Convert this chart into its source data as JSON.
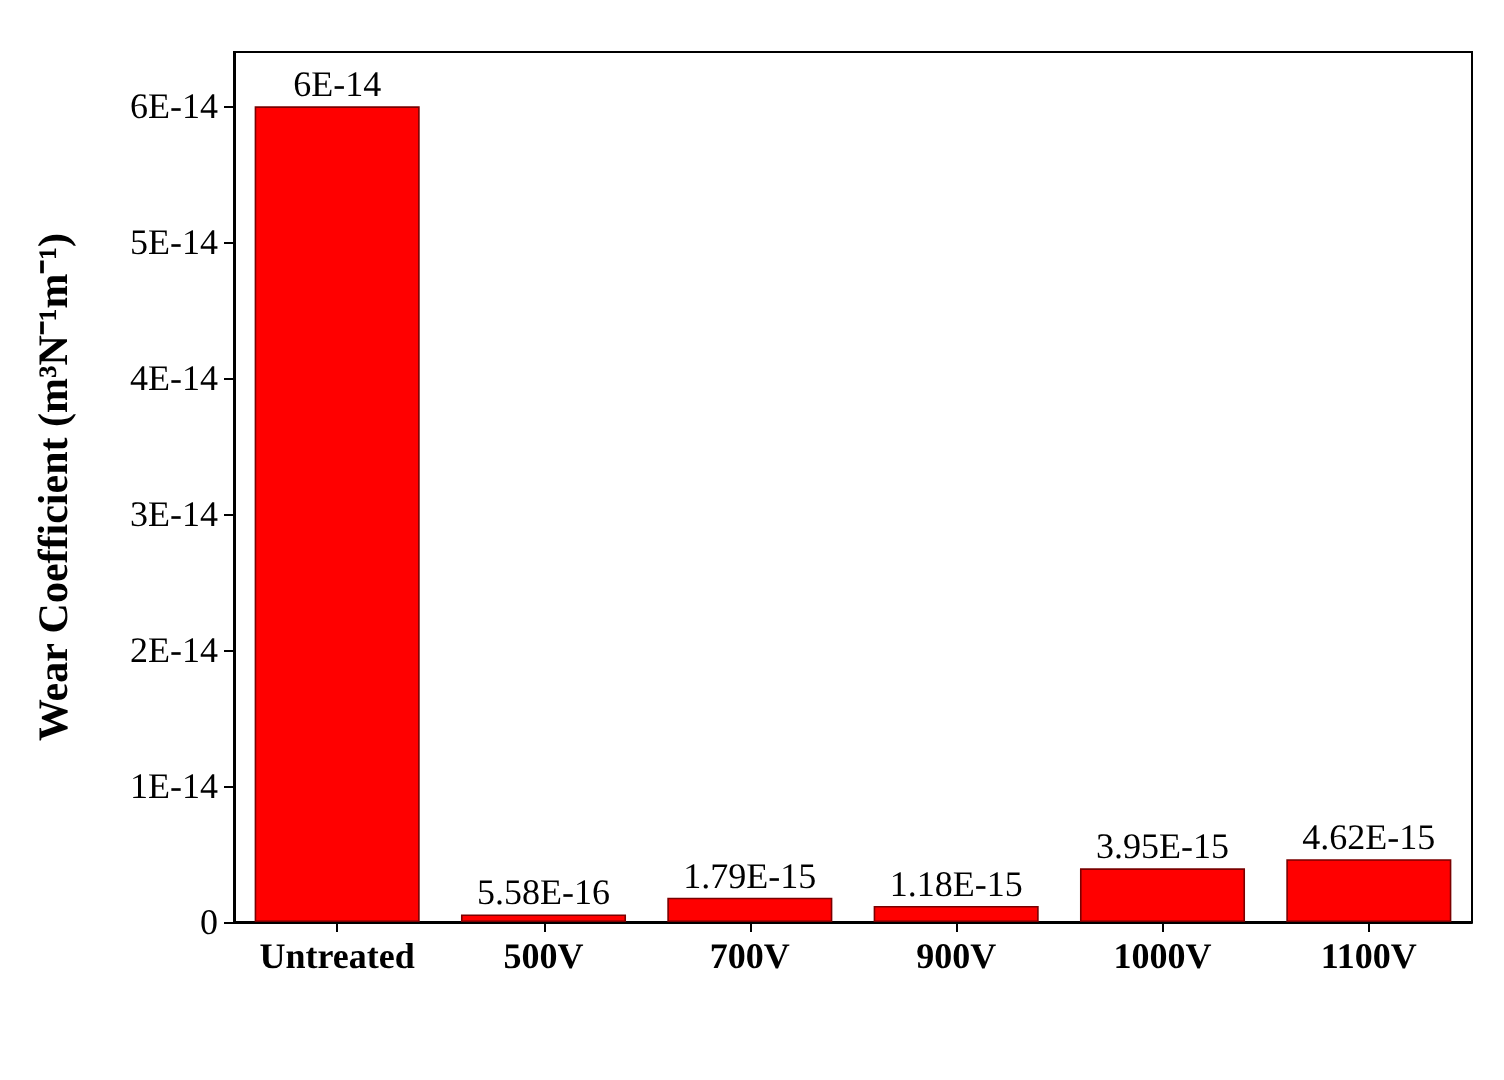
{
  "chart_data": {
    "type": "bar",
    "ylabel": "Wear Coefficient (m³N⁻¹m⁻¹)",
    "categories": [
      "Untreated",
      "500V",
      "700V",
      "900V",
      "1000V",
      "1100V"
    ],
    "values": [
      6e-14,
      5.58e-16,
      1.79e-15,
      1.18e-15,
      3.95e-15,
      4.62e-15
    ],
    "value_labels": [
      "6E-14",
      "5.58E-16",
      "1.79E-15",
      "1.18E-15",
      "3.95E-15",
      "4.62E-15"
    ],
    "color": "#ff0000",
    "ylim": [
      0,
      6.4e-14
    ],
    "yticks": [
      0,
      {
        "value": 1e-14,
        "label": "1E-14"
      },
      {
        "value": 2e-14,
        "label": "2E-14"
      },
      {
        "value": 3e-14,
        "label": "3E-14"
      },
      {
        "value": 4e-14,
        "label": "4E-14"
      },
      {
        "value": 5e-14,
        "label": "5E-14"
      },
      {
        "value": 6e-14,
        "label": "6E-14"
      }
    ],
    "grid": false
  }
}
